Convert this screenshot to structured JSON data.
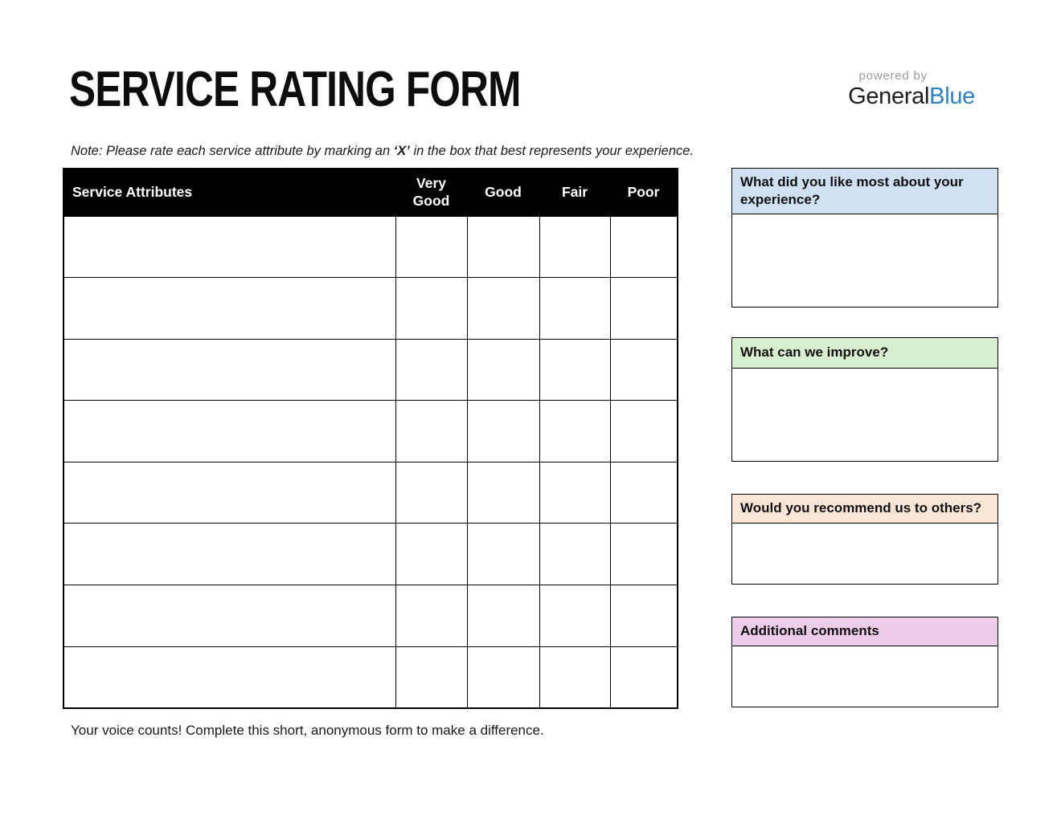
{
  "page": {
    "title": "SERVICE RATING FORM",
    "note_prefix": "Note: Please rate each service attribute by marking an ",
    "note_bold": "‘X’",
    "note_suffix": " in the box that best represents your experience.",
    "footer": "Your voice counts! Complete this short, anonymous form to make a difference."
  },
  "logo": {
    "powered_by": "powered by",
    "brand_black": "General",
    "brand_blue": "Blue",
    "brand_blue_color": "#2e7fc4",
    "powered_by_color": "#9b9b9b"
  },
  "rating_table": {
    "columns": [
      "Service Attributes",
      "Very Good",
      "Good",
      "Fair",
      "Poor"
    ],
    "row_count": 8,
    "header_bg": "#000000",
    "header_text_color": "#ffffff",
    "rows": [
      [
        "",
        "",
        "",
        "",
        ""
      ],
      [
        "",
        "",
        "",
        "",
        ""
      ],
      [
        "",
        "",
        "",
        "",
        ""
      ],
      [
        "",
        "",
        "",
        "",
        ""
      ],
      [
        "",
        "",
        "",
        "",
        ""
      ],
      [
        "",
        "",
        "",
        "",
        ""
      ],
      [
        "",
        "",
        "",
        "",
        ""
      ],
      [
        "",
        "",
        "",
        "",
        ""
      ]
    ]
  },
  "feedback_boxes": [
    {
      "label": "What did you like most about your experience?",
      "color": "#cfe0f2",
      "value": ""
    },
    {
      "label": "What can we improve?",
      "color": "#d8eecf",
      "value": ""
    },
    {
      "label": "Would you recommend us to others?",
      "color": "#fbe5d7",
      "value": ""
    },
    {
      "label": "Additional comments",
      "color": "#edcdea",
      "value": ""
    }
  ]
}
